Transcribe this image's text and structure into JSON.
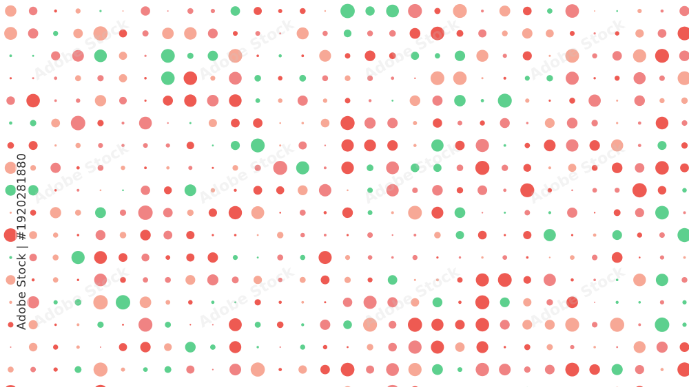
{
  "palette": {
    "green": "#5dd08e",
    "red": "#ee5a52",
    "pink": "#f08383",
    "salmon": "#f7a896"
  },
  "watermark": {
    "id_text": "Adobe Stock | #1920281880",
    "tile_text": "Adobe Stock"
  }
}
